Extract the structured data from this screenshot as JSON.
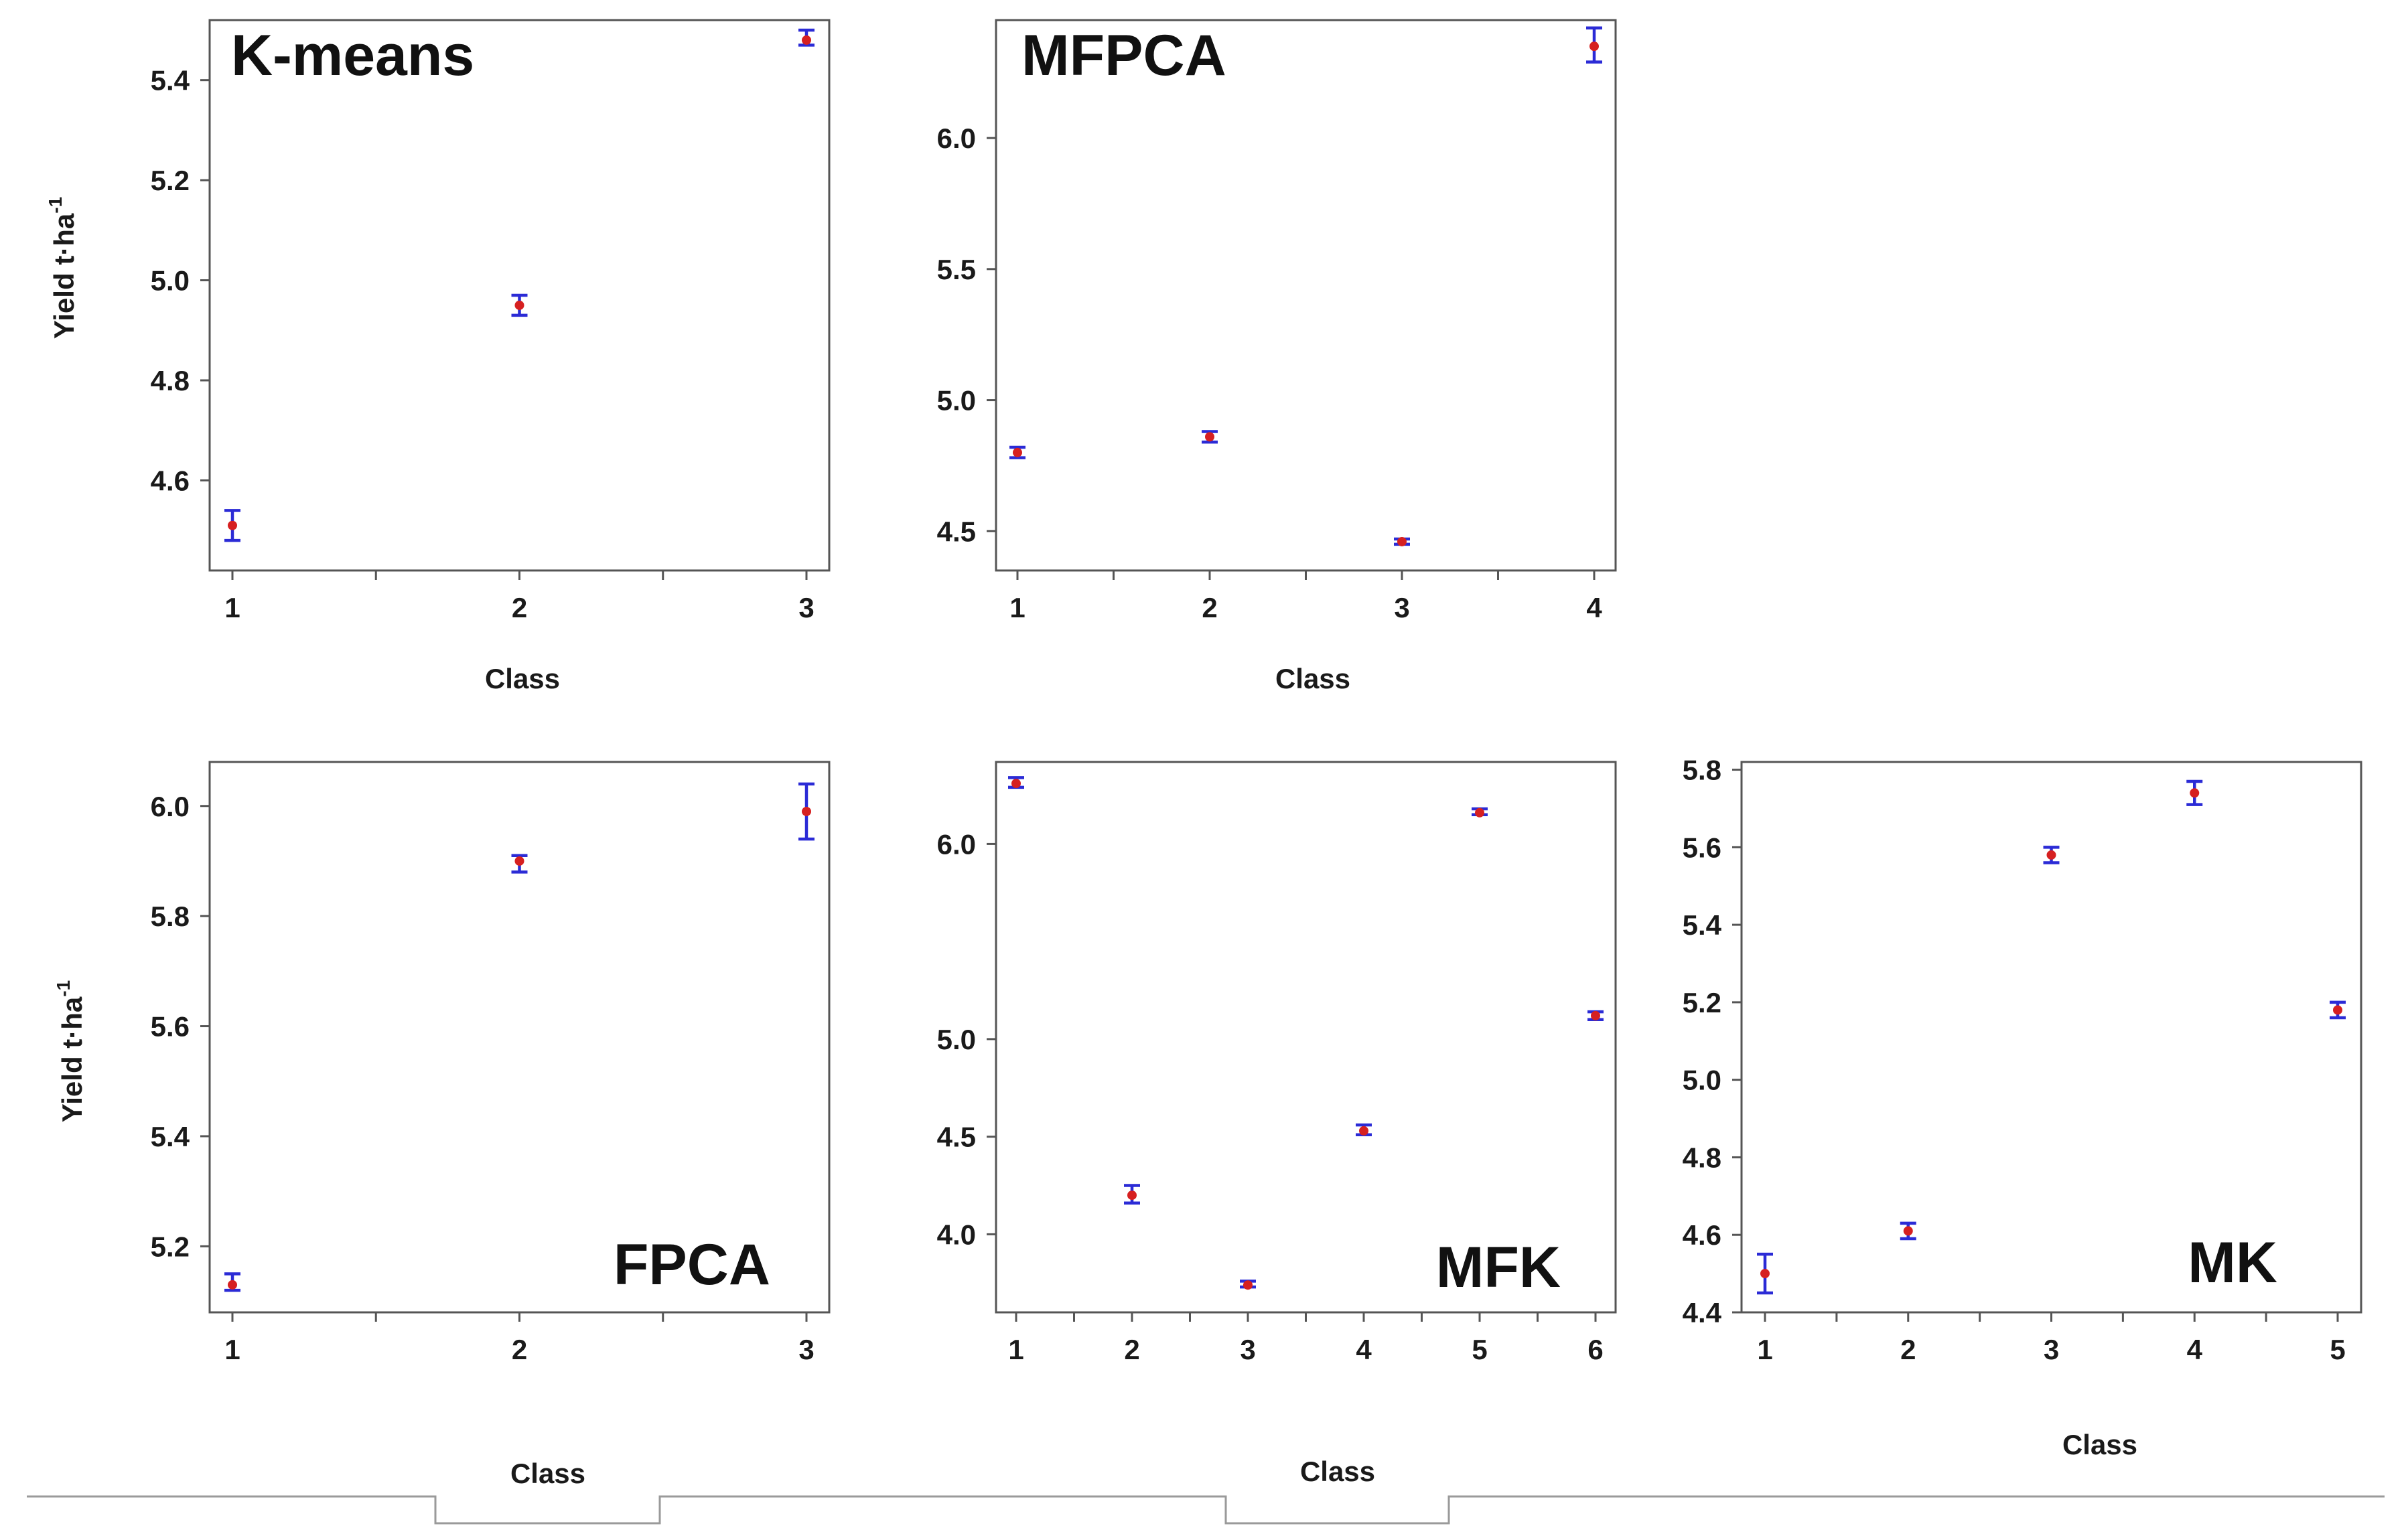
{
  "chart_data": [
    {
      "type": "scatter",
      "title": "K-means",
      "xlabel": "Class",
      "ylabel": "Yield t·ha",
      "ylabel_sup": "-1",
      "categories": [
        "1",
        "2",
        "3"
      ],
      "values": [
        4.51,
        4.95,
        5.48
      ],
      "err_low": [
        4.48,
        4.93,
        5.47
      ],
      "err_high": [
        4.54,
        4.97,
        5.5
      ],
      "yticks": [
        "4.6",
        "4.8",
        "5.0",
        "5.2",
        "5.4"
      ],
      "ylim": [
        4.42,
        5.52
      ],
      "legend": "none"
    },
    {
      "type": "scatter",
      "title": "MFPCA",
      "xlabel": "Class",
      "ylabel": "",
      "ylabel_sup": "",
      "categories": [
        "1",
        "2",
        "3",
        "4"
      ],
      "values": [
        4.8,
        4.86,
        4.46,
        6.35
      ],
      "err_low": [
        4.78,
        4.84,
        4.45,
        6.29
      ],
      "err_high": [
        4.82,
        4.88,
        4.47,
        6.42
      ],
      "yticks": [
        "4.5",
        "5.0",
        "5.5",
        "6.0"
      ],
      "ylim": [
        4.35,
        6.45
      ],
      "legend": "none"
    },
    {
      "type": "scatter",
      "title": "FPCA",
      "xlabel": "Class",
      "ylabel": "Yield t·ha",
      "ylabel_sup": "-1",
      "categories": [
        "1",
        "2",
        "3"
      ],
      "values": [
        5.13,
        5.9,
        5.99
      ],
      "err_low": [
        5.12,
        5.88,
        5.94
      ],
      "err_high": [
        5.15,
        5.91,
        6.04
      ],
      "yticks": [
        "5.2",
        "5.4",
        "5.6",
        "5.8",
        "6.0"
      ],
      "ylim": [
        5.08,
        6.08
      ],
      "legend": "none"
    },
    {
      "type": "scatter",
      "title": "MFK",
      "xlabel": "Class",
      "ylabel": "",
      "ylabel_sup": "",
      "categories": [
        "1",
        "2",
        "3",
        "4",
        "5",
        "6"
      ],
      "values": [
        6.31,
        4.2,
        3.74,
        4.53,
        6.16,
        5.12
      ],
      "err_low": [
        6.29,
        4.16,
        3.73,
        4.51,
        6.15,
        5.1
      ],
      "err_high": [
        6.34,
        4.25,
        3.76,
        4.56,
        6.18,
        5.14
      ],
      "yticks": [
        "4.0",
        "4.5",
        "5.0",
        "6.0"
      ],
      "ylim": [
        3.6,
        6.42
      ],
      "legend": "none"
    },
    {
      "type": "scatter",
      "title": "MK",
      "xlabel": "Class",
      "ylabel": "",
      "ylabel_sup": "",
      "categories": [
        "1",
        "2",
        "3",
        "4",
        "5"
      ],
      "values": [
        4.5,
        4.61,
        5.58,
        5.74,
        5.18
      ],
      "err_low": [
        4.45,
        4.59,
        5.56,
        5.71,
        5.16
      ],
      "err_high": [
        4.55,
        4.63,
        5.6,
        5.77,
        5.2
      ],
      "yticks": [
        "4.4",
        "4.6",
        "4.8",
        "5.0",
        "5.2",
        "5.4",
        "5.6",
        "5.8"
      ],
      "ylim": [
        4.4,
        5.82
      ],
      "legend": "none"
    }
  ]
}
